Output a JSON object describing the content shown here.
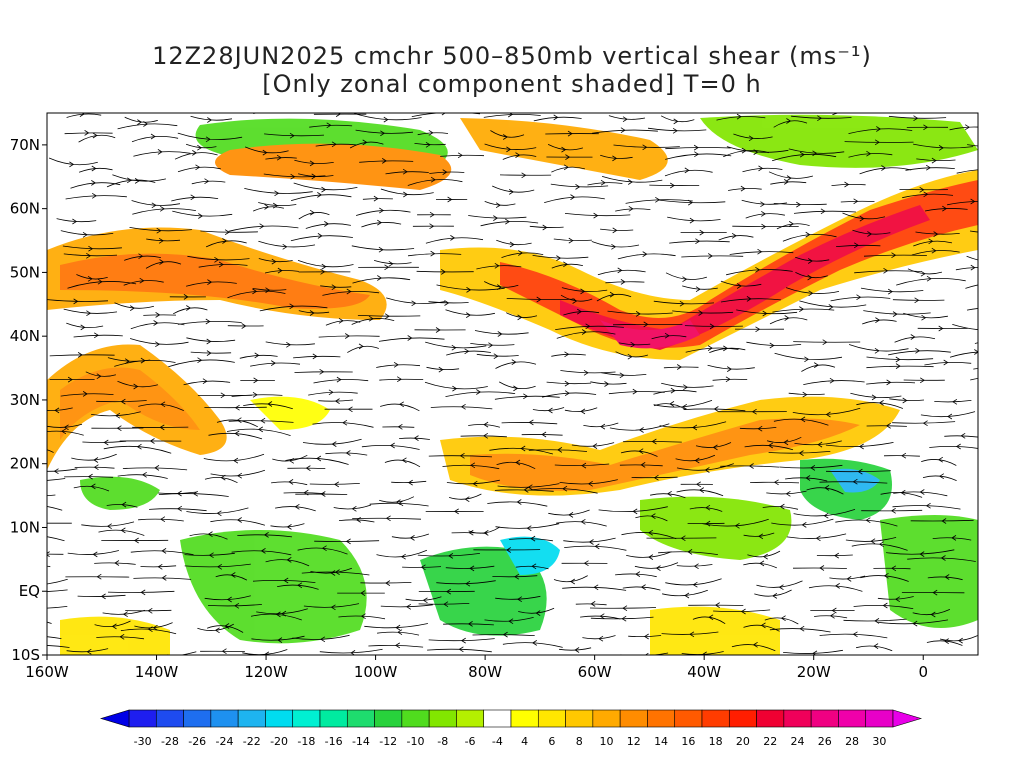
{
  "title": {
    "line1": "12Z28JUN2025 cmchr 500–850mb vertical shear (ms⁻¹)",
    "line2": "[Only zonal component shaded] T=0 h"
  },
  "map": {
    "lon_range": [
      -160,
      10
    ],
    "lat_range": [
      -10,
      75
    ],
    "lon_ticks": [
      {
        "value": -160,
        "label": "160W"
      },
      {
        "value": -140,
        "label": "140W"
      },
      {
        "value": -120,
        "label": "120W"
      },
      {
        "value": -100,
        "label": "100W"
      },
      {
        "value": -80,
        "label": "80W"
      },
      {
        "value": -60,
        "label": "60W"
      },
      {
        "value": -40,
        "label": "40W"
      },
      {
        "value": -20,
        "label": "20W"
      },
      {
        "value": 0,
        "label": "0"
      }
    ],
    "lat_ticks": [
      {
        "value": 70,
        "label": "70N"
      },
      {
        "value": 60,
        "label": "60N"
      },
      {
        "value": 50,
        "label": "50N"
      },
      {
        "value": 40,
        "label": "40N"
      },
      {
        "value": 30,
        "label": "30N"
      },
      {
        "value": 20,
        "label": "20N"
      },
      {
        "value": 10,
        "label": "10N"
      },
      {
        "value": 0,
        "label": "EQ"
      },
      {
        "value": -10,
        "label": "10S"
      }
    ]
  },
  "colorbar": {
    "labels": [
      "-30",
      "-28",
      "-26",
      "-24",
      "-22",
      "-20",
      "-18",
      "-16",
      "-14",
      "-12",
      "-10",
      "-8",
      "-6",
      "-4",
      "4",
      "6",
      "8",
      "10",
      "12",
      "14",
      "16",
      "18",
      "20",
      "22",
      "24",
      "26",
      "28",
      "30"
    ],
    "colors": [
      "#1e1ef0",
      "#1e4bf0",
      "#1e6ef0",
      "#1e91f0",
      "#1eb4f0",
      "#00dcf0",
      "#00f0d2",
      "#00eba0",
      "#1edc6e",
      "#28d23c",
      "#50dc1e",
      "#82e600",
      "#b4f000",
      "#ffffff",
      "#ffff00",
      "#ffe600",
      "#ffc800",
      "#ffaa00",
      "#ff8c00",
      "#ff7300",
      "#ff5a00",
      "#ff3c00",
      "#ff1e00",
      "#f00032",
      "#f0005a",
      "#f00082",
      "#f000aa",
      "#e800c8"
    ]
  }
}
